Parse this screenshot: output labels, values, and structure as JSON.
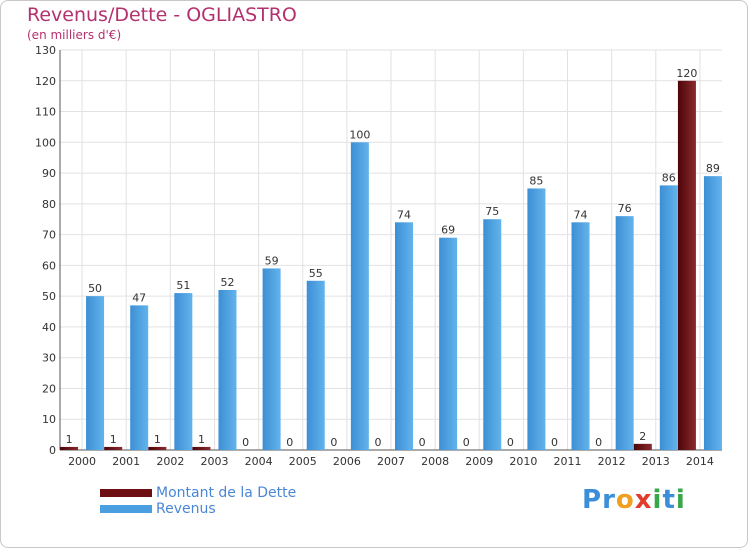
{
  "chart_data": {
    "type": "bar",
    "title": "Revenus/Dette - OGLIASTRO",
    "subtitle": "(en milliers d'€)",
    "categories": [
      "2000",
      "2001",
      "2002",
      "2003",
      "2004",
      "2005",
      "2006",
      "2007",
      "2008",
      "2009",
      "2010",
      "2011",
      "2012",
      "2013",
      "2014"
    ],
    "series": [
      {
        "name": "Montant de la Dette",
        "color": "#6e0f14",
        "values": [
          1,
          1,
          1,
          1,
          0,
          0,
          0,
          0,
          0,
          0,
          0,
          0,
          0,
          2,
          120
        ]
      },
      {
        "name": "Revenus",
        "color": "#4a9fe0",
        "values": [
          50,
          47,
          51,
          52,
          59,
          55,
          100,
          74,
          69,
          75,
          85,
          74,
          76,
          86,
          89
        ]
      }
    ],
    "ylim": [
      0,
      130
    ],
    "yticks": [
      0,
      10,
      20,
      30,
      40,
      50,
      60,
      70,
      80,
      90,
      100,
      110,
      120,
      130
    ],
    "grid": true,
    "legend": "bottom-left"
  },
  "logo": {
    "text": "Proxiti",
    "letters": [
      {
        "ch": "P",
        "color": "#3a8fd8"
      },
      {
        "ch": "r",
        "color": "#3a8fd8"
      },
      {
        "ch": "o",
        "color": "#f0a020"
      },
      {
        "ch": "x",
        "color": "#e23b2e"
      },
      {
        "ch": "i",
        "color": "#3aa64a"
      },
      {
        "ch": "t",
        "color": "#3a8fd8"
      },
      {
        "ch": "i",
        "color": "#3aa64a"
      }
    ]
  }
}
